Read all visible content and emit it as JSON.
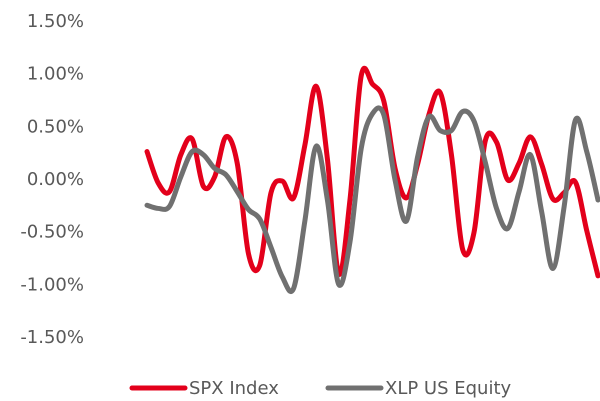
{
  "chart_data": {
    "type": "line",
    "categories": [
      null,
      null,
      null,
      null,
      null,
      null,
      null,
      null,
      null,
      null,
      null,
      null,
      null,
      null,
      null,
      null,
      null,
      null,
      null,
      null,
      null,
      null,
      null,
      null,
      null,
      null,
      null,
      null,
      null,
      null,
      null,
      null,
      null,
      null,
      null,
      null,
      null,
      null,
      null,
      null,
      null
    ],
    "series": [
      {
        "name": "SPX Index",
        "color": "#e3001b",
        "values": [
          0.27,
          -0.03,
          -0.11,
          0.24,
          0.39,
          -0.06,
          0.03,
          0.41,
          0.16,
          -0.7,
          -0.81,
          -0.12,
          -0.01,
          -0.17,
          0.33,
          0.89,
          0.2,
          -0.89,
          -0.19,
          0.99,
          0.91,
          0.75,
          0.11,
          -0.17,
          0.15,
          0.62,
          0.83,
          0.24,
          -0.66,
          -0.5,
          0.37,
          0.36,
          0,
          0.16,
          0.41,
          0.15,
          -0.18,
          -0.12,
          -0.02,
          -0.48,
          -0.91
        ]
      },
      {
        "name": "XLP US Equity",
        "color": "#707070",
        "values": [
          -0.24,
          -0.27,
          -0.25,
          0.03,
          0.27,
          0.24,
          0.11,
          0.05,
          -0.11,
          -0.28,
          -0.37,
          -0.64,
          -0.92,
          -1.03,
          -0.39,
          0.32,
          -0.19,
          -0.99,
          -0.59,
          0.3,
          0.63,
          0.62,
          0,
          -0.39,
          0.22,
          0.6,
          0.47,
          0.47,
          0.65,
          0.56,
          0.17,
          -0.27,
          -0.46,
          -0.11,
          0.24,
          -0.3,
          -0.84,
          -0.25,
          0.57,
          0.27,
          -0.19
        ]
      }
    ],
    "ylim": [
      -1.5,
      1.5
    ],
    "yticks": [
      {
        "value": 1.5,
        "label": "1.50%"
      },
      {
        "value": 1,
        "label": "1.00%"
      },
      {
        "value": 0.5,
        "label": "0.50%"
      },
      {
        "value": 0,
        "label": "0.00%"
      },
      {
        "value": -0.5,
        "label": "-0.50%"
      },
      {
        "value": -1,
        "label": "-1.00%"
      },
      {
        "value": -1.5,
        "label": "-1.50%"
      }
    ],
    "grid": false,
    "legend": "bottom"
  }
}
